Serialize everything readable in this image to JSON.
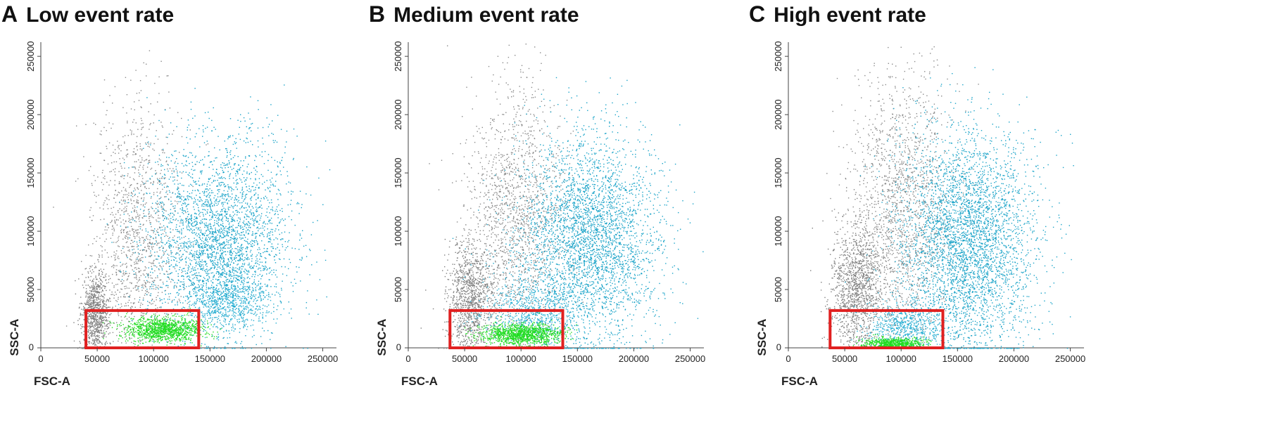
{
  "chart_data": [
    {
      "type": "scatter",
      "panel_letter": "A",
      "title": "Low event rate",
      "xlabel": "FSC-A",
      "ylabel": "SSC-A",
      "xlim": [
        0,
        262144
      ],
      "ylim": [
        0,
        262144
      ],
      "xticks": [
        "0",
        "50000",
        "100000",
        "150000",
        "200000",
        "250000"
      ],
      "yticks": [
        "0",
        "50000",
        "100000",
        "150000",
        "200000",
        "250000"
      ],
      "gate": {
        "x": [
          40000,
          140000
        ],
        "y": [
          0,
          32000
        ],
        "color": "#e02020"
      },
      "populations": [
        {
          "color": "#7f7f7f",
          "center": [
            48000,
            30000
          ],
          "spread": [
            6000,
            18000
          ],
          "n": 900
        },
        {
          "color": "#8a8a8a",
          "center": [
            85000,
            90000
          ],
          "spread": [
            20000,
            60000
          ],
          "n": 1400
        },
        {
          "color": "#1aa3c8",
          "center": [
            158000,
            92000
          ],
          "spread": [
            32000,
            42000
          ],
          "n": 3200
        },
        {
          "color": "#2ab0d4",
          "center": [
            165000,
            40000
          ],
          "spread": [
            18000,
            12000
          ],
          "n": 600
        },
        {
          "color": "#22dd22",
          "center": [
            108000,
            16000
          ],
          "spread": [
            17000,
            5000
          ],
          "n": 1200
        }
      ]
    },
    {
      "type": "scatter",
      "panel_letter": "B",
      "title": "Medium event rate",
      "xlabel": "FSC-A",
      "ylabel": "SSC-A",
      "xlim": [
        0,
        262144
      ],
      "ylim": [
        0,
        262144
      ],
      "xticks": [
        "0",
        "50000",
        "100000",
        "150000",
        "200000",
        "250000"
      ],
      "yticks": [
        "0",
        "50000",
        "100000",
        "150000",
        "200000",
        "250000"
      ],
      "gate": {
        "x": [
          37000,
          137000
        ],
        "y": [
          0,
          32000
        ],
        "color": "#e02020"
      },
      "populations": [
        {
          "color": "#7f7f7f",
          "center": [
            55000,
            40000
          ],
          "spread": [
            10000,
            25000
          ],
          "n": 1100
        },
        {
          "color": "#8a8a8a",
          "center": [
            95000,
            110000
          ],
          "spread": [
            22000,
            60000
          ],
          "n": 1600
        },
        {
          "color": "#1aa3c8",
          "center": [
            160000,
            92000
          ],
          "spread": [
            32000,
            45000
          ],
          "n": 3600
        },
        {
          "color": "#2ab0d4",
          "center": [
            110000,
            30000
          ],
          "spread": [
            22000,
            15000
          ],
          "n": 700
        },
        {
          "color": "#22dd22",
          "center": [
            100000,
            12000
          ],
          "spread": [
            18000,
            4500
          ],
          "n": 1200
        }
      ]
    },
    {
      "type": "scatter",
      "panel_letter": "C",
      "title": "High event rate",
      "xlabel": "FSC-A",
      "ylabel": "SSC-A",
      "xlim": [
        0,
        262144
      ],
      "ylim": [
        0,
        262144
      ],
      "xticks": [
        "0",
        "50000",
        "100000",
        "150000",
        "200000",
        "250000"
      ],
      "yticks": [
        "0",
        "50000",
        "100000",
        "150000",
        "200000",
        "250000"
      ],
      "gate": {
        "x": [
          37000,
          137000
        ],
        "y": [
          0,
          32000
        ],
        "color": "#e02020"
      },
      "populations": [
        {
          "color": "#7f7f7f",
          "center": [
            60000,
            50000
          ],
          "spread": [
            12000,
            30000
          ],
          "n": 1300
        },
        {
          "color": "#8a8a8a",
          "center": [
            100000,
            120000
          ],
          "spread": [
            22000,
            60000
          ],
          "n": 1700
        },
        {
          "color": "#1aa3c8",
          "center": [
            158000,
            90000
          ],
          "spread": [
            30000,
            48000
          ],
          "n": 4000
        },
        {
          "color": "#2ab0d4",
          "center": [
            105000,
            18000
          ],
          "spread": [
            18000,
            10000
          ],
          "n": 600
        },
        {
          "color": "#22dd22",
          "center": [
            92000,
            4000
          ],
          "spread": [
            12000,
            2500
          ],
          "n": 700
        }
      ]
    }
  ]
}
